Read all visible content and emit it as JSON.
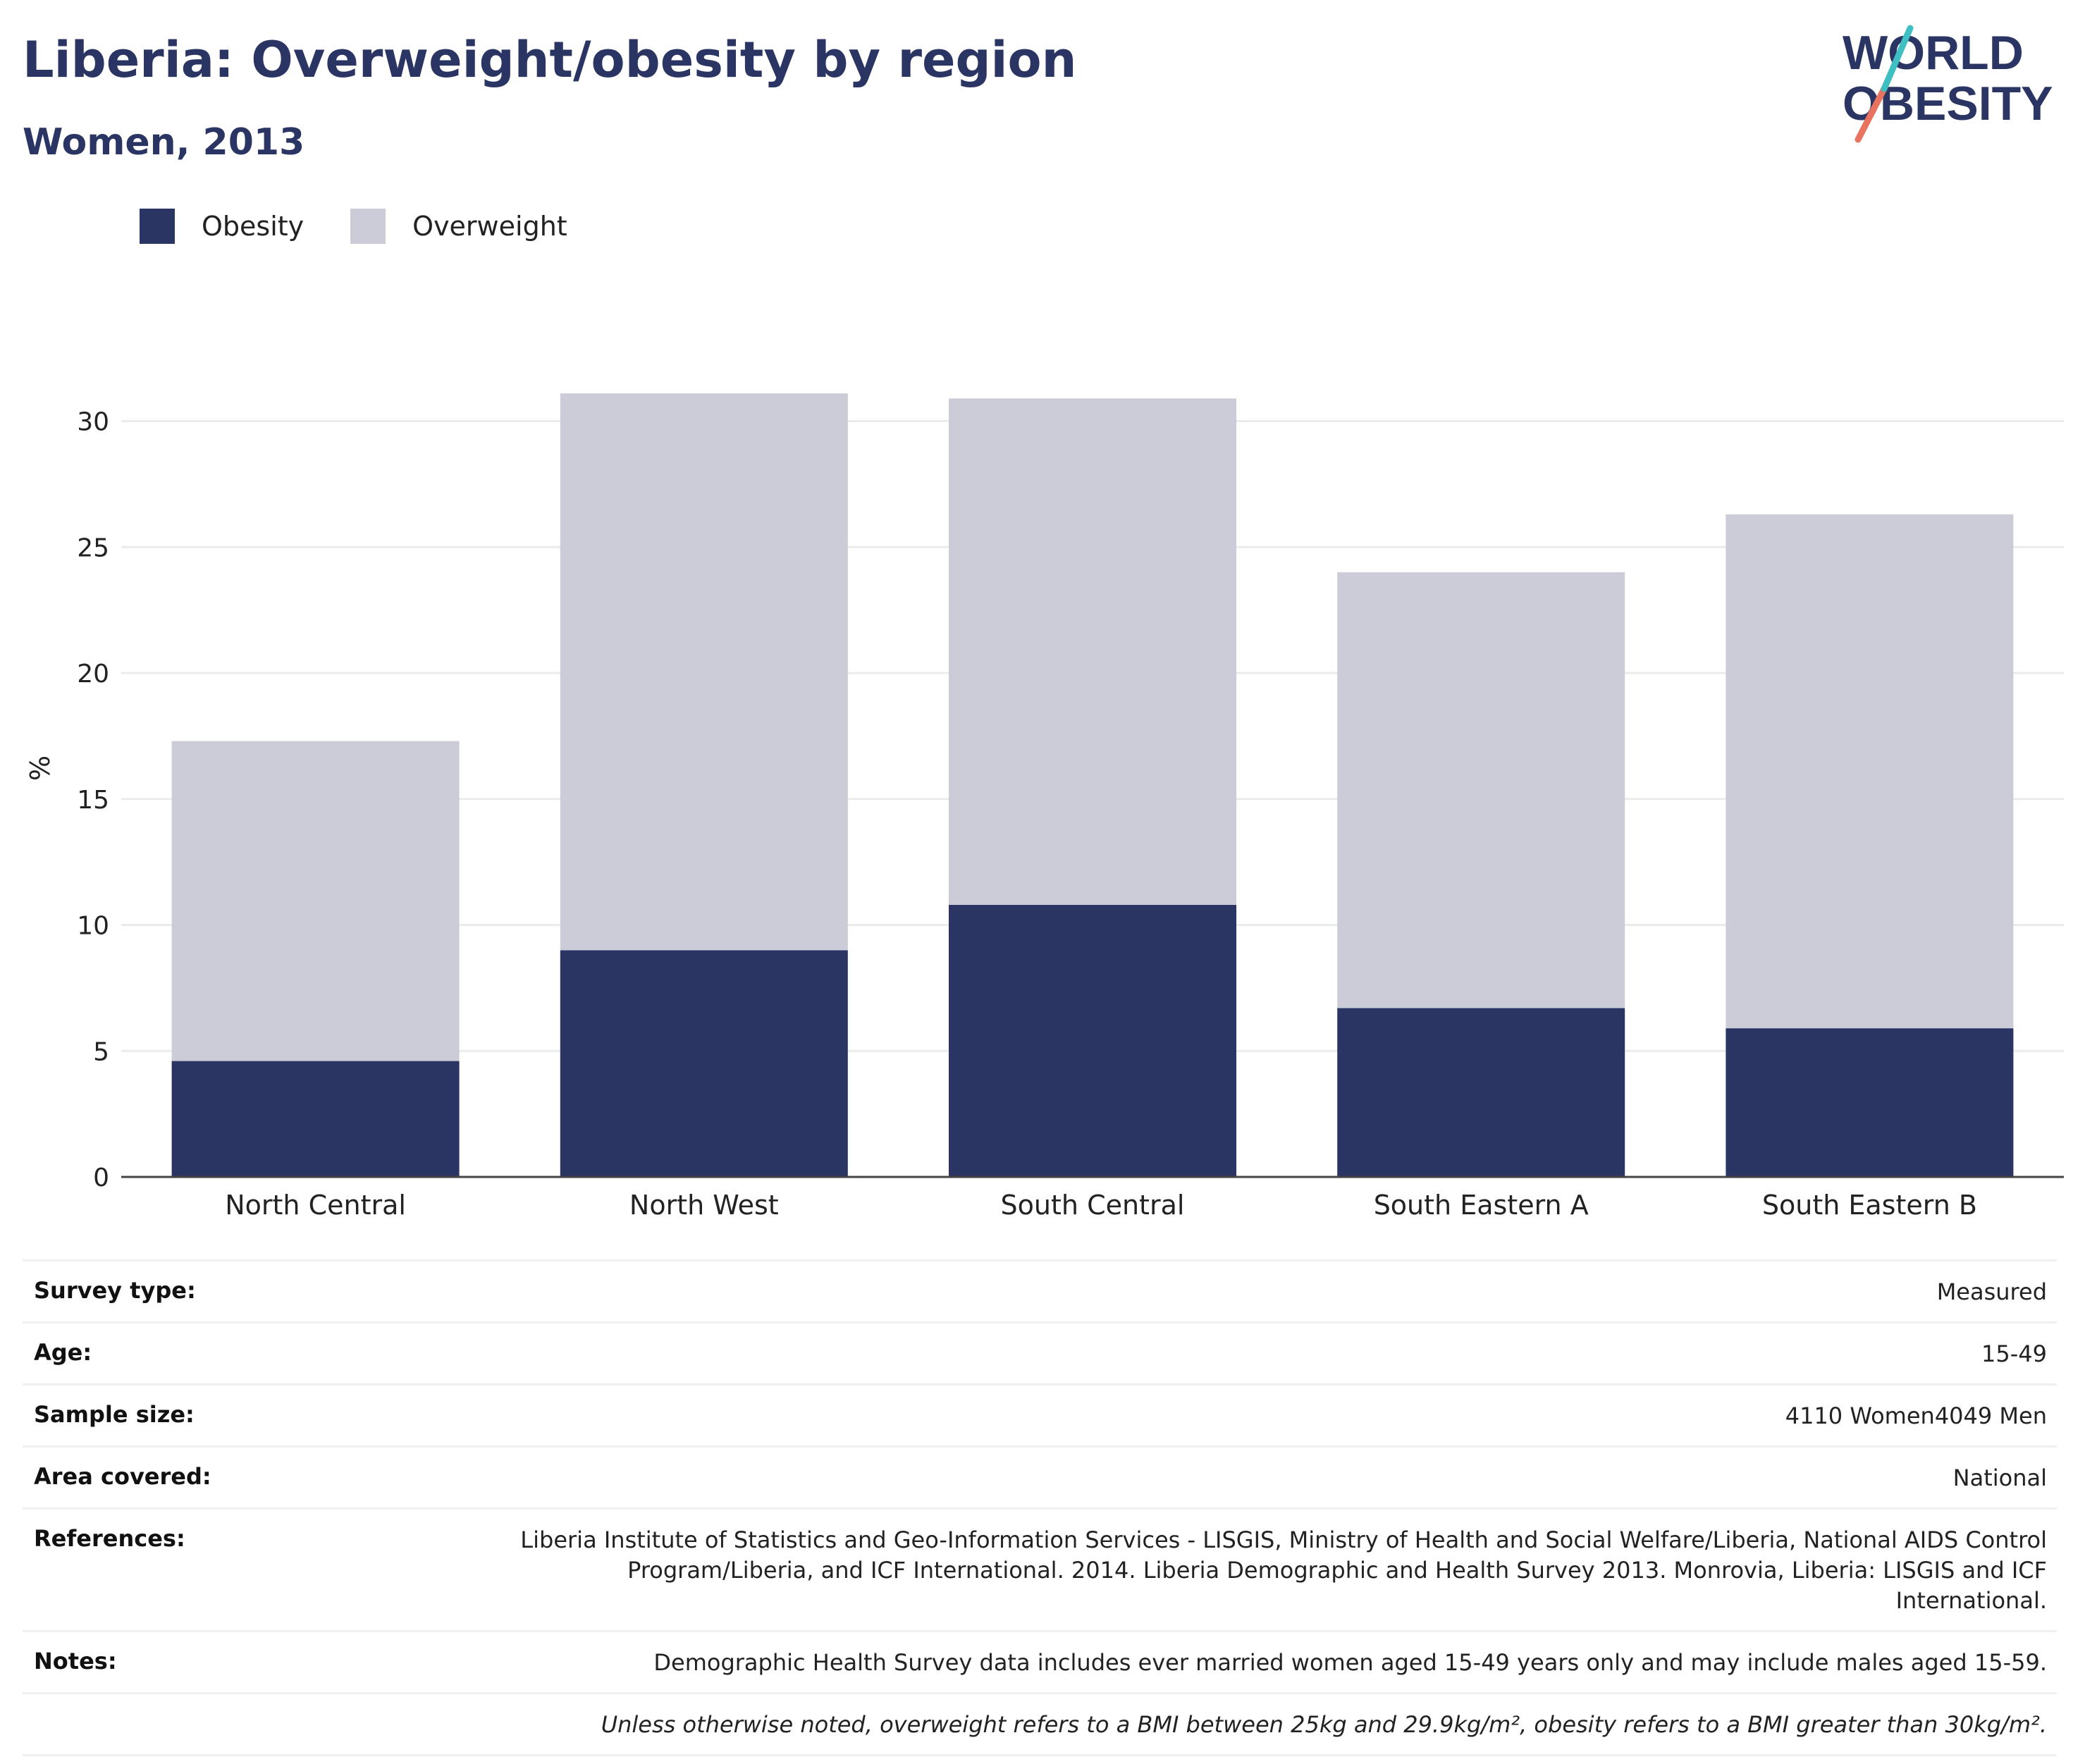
{
  "header": {
    "title": "Liberia: Overweight/obesity by region",
    "subtitle": "Women, 2013",
    "logo_text": "WORLD OBESITY"
  },
  "legend": [
    {
      "label": "Obesity",
      "color": "#2a3564"
    },
    {
      "label": "Overweight",
      "color": "#cbccd8"
    }
  ],
  "chart_data": {
    "type": "bar",
    "stacked": true,
    "categories": [
      "North Central",
      "North West",
      "South Central",
      "South Eastern A",
      "South Eastern B"
    ],
    "series": [
      {
        "name": "Obesity",
        "color": "#2a3564",
        "values": [
          4.6,
          9.0,
          10.8,
          6.7,
          5.9
        ]
      },
      {
        "name": "Overweight",
        "color": "#cbccd8",
        "values": [
          12.7,
          22.1,
          20.1,
          17.3,
          20.4
        ]
      }
    ],
    "ylabel": "%",
    "ylim": [
      0,
      31.5
    ],
    "yticks": [
      0,
      5,
      10,
      15,
      20,
      25,
      30
    ],
    "grid": true,
    "legend_position": "top-left"
  },
  "info": {
    "rows": [
      {
        "label": "Survey type:",
        "value": "Measured"
      },
      {
        "label": "Age:",
        "value": "15-49"
      },
      {
        "label": "Sample size:",
        "value": "4110 Women4049 Men"
      },
      {
        "label": "Area covered:",
        "value": "National"
      },
      {
        "label": "References:",
        "value": "Liberia Institute of Statistics and Geo-Information Services - LISGIS, Ministry of Health and Social Welfare/Liberia, National AIDS Control Program/Liberia, and ICF International. 2014. Liberia Demographic and Health Survey 2013. Monrovia, Liberia: LISGIS and ICF International."
      },
      {
        "label": "Notes:",
        "value": "Demographic Health Survey data includes ever married women aged 15-49 years only and may include males aged 15-59."
      }
    ],
    "footnote": "Unless otherwise noted, overweight refers to a BMI between 25kg and 29.9kg/m², obesity refers to a BMI greater than 30kg/m²."
  }
}
